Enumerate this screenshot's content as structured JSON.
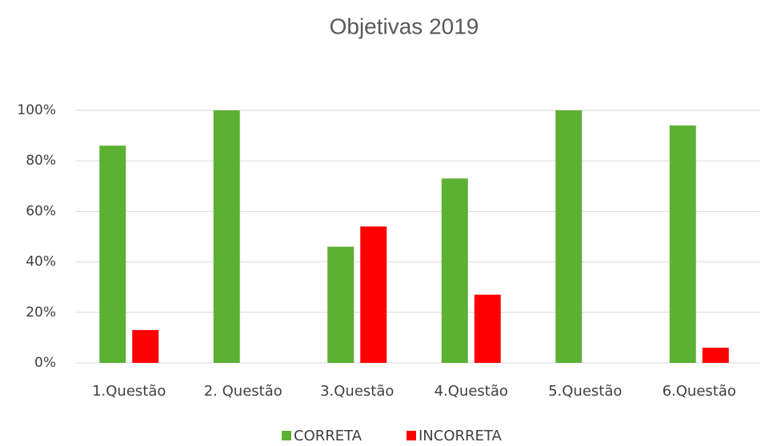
{
  "chart_data": {
    "type": "bar",
    "title": "Objetivas 2019",
    "categories": [
      "1.Questão",
      "2. Questão",
      "3.Questão",
      "4.Questão",
      "5.Questão",
      "6.Questão"
    ],
    "series": [
      {
        "name": "CORRETA",
        "color": "#5bb133",
        "values": [
          86,
          100,
          46,
          73,
          100,
          94
        ]
      },
      {
        "name": "INCORRETA",
        "color": "#ff0000",
        "values": [
          13,
          0,
          54,
          27,
          0,
          6
        ]
      }
    ],
    "ylim": [
      0,
      100
    ],
    "yticks": [
      {
        "value": 0,
        "label": "0%"
      },
      {
        "value": 20,
        "label": "20%"
      },
      {
        "value": 40,
        "label": "40%"
      },
      {
        "value": 60,
        "label": "60%"
      },
      {
        "value": 80,
        "label": "80%"
      },
      {
        "value": 100,
        "label": "100%"
      }
    ],
    "grid": true,
    "legend": "bottom"
  }
}
